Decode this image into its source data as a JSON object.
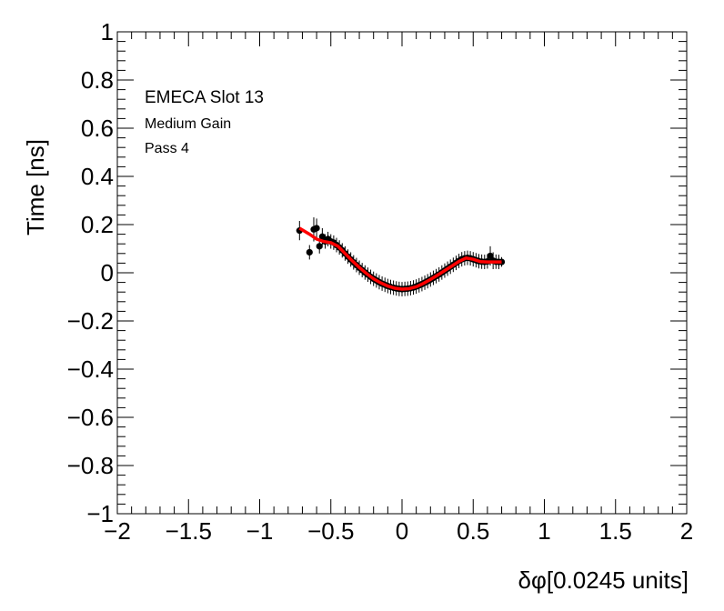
{
  "chart_data": {
    "type": "scatter",
    "title": "",
    "xlabel": "δφ[0.0245 units]",
    "ylabel": "Time [ns]",
    "xlim": [
      -2,
      2
    ],
    "ylim": [
      -1,
      1
    ],
    "x_ticks": [
      "−2",
      "−1.5",
      "−1",
      "−0.5",
      "0",
      "0.5",
      "1",
      "1.5",
      "2"
    ],
    "y_ticks": [
      "−1",
      "−0.8",
      "−0.6",
      "−0.4",
      "−0.2",
      "0",
      "0.2",
      "0.4",
      "0.6",
      "0.8",
      "1"
    ],
    "x_tick_values": [
      -2,
      -1.5,
      -1,
      -0.5,
      0,
      0.5,
      1,
      1.5,
      2
    ],
    "y_tick_values": [
      -1,
      -0.8,
      -0.6,
      -0.4,
      -0.2,
      0,
      0.2,
      0.4,
      0.6,
      0.8,
      1
    ],
    "annotations": [
      "EMECA Slot 13",
      "Medium Gain",
      "Pass 4"
    ],
    "grid": false,
    "colors": {
      "points": "#000000",
      "fit": "#ff0000"
    },
    "points": [
      {
        "x": -0.72,
        "y": 0.175,
        "err": 0.04
      },
      {
        "x": -0.65,
        "y": 0.085,
        "err": 0.03
      },
      {
        "x": -0.62,
        "y": 0.18,
        "err": 0.05
      },
      {
        "x": -0.6,
        "y": 0.185,
        "err": 0.04
      },
      {
        "x": -0.58,
        "y": 0.11,
        "err": 0.03
      },
      {
        "x": -0.56,
        "y": 0.15,
        "err": 0.035
      },
      {
        "x": -0.54,
        "y": 0.13,
        "err": 0.03
      },
      {
        "x": -0.52,
        "y": 0.14,
        "err": 0.03
      },
      {
        "x": -0.5,
        "y": 0.13,
        "err": 0.03
      },
      {
        "x": -0.48,
        "y": 0.125,
        "err": 0.03
      },
      {
        "x": -0.46,
        "y": 0.115,
        "err": 0.03
      },
      {
        "x": -0.44,
        "y": 0.105,
        "err": 0.03
      },
      {
        "x": -0.42,
        "y": 0.093,
        "err": 0.03
      },
      {
        "x": -0.4,
        "y": 0.08,
        "err": 0.03
      },
      {
        "x": -0.38,
        "y": 0.067,
        "err": 0.03
      },
      {
        "x": -0.36,
        "y": 0.055,
        "err": 0.03
      },
      {
        "x": -0.34,
        "y": 0.043,
        "err": 0.03
      },
      {
        "x": -0.32,
        "y": 0.032,
        "err": 0.03
      },
      {
        "x": -0.3,
        "y": 0.021,
        "err": 0.03
      },
      {
        "x": -0.28,
        "y": 0.011,
        "err": 0.03
      },
      {
        "x": -0.26,
        "y": 0.001,
        "err": 0.03
      },
      {
        "x": -0.24,
        "y": -0.008,
        "err": 0.03
      },
      {
        "x": -0.22,
        "y": -0.017,
        "err": 0.03
      },
      {
        "x": -0.2,
        "y": -0.025,
        "err": 0.03
      },
      {
        "x": -0.18,
        "y": -0.032,
        "err": 0.03
      },
      {
        "x": -0.16,
        "y": -0.039,
        "err": 0.03
      },
      {
        "x": -0.14,
        "y": -0.045,
        "err": 0.03
      },
      {
        "x": -0.12,
        "y": -0.05,
        "err": 0.03
      },
      {
        "x": -0.1,
        "y": -0.055,
        "err": 0.03
      },
      {
        "x": -0.08,
        "y": -0.059,
        "err": 0.03
      },
      {
        "x": -0.06,
        "y": -0.062,
        "err": 0.03
      },
      {
        "x": -0.04,
        "y": -0.065,
        "err": 0.03
      },
      {
        "x": -0.02,
        "y": -0.067,
        "err": 0.03
      },
      {
        "x": 0.0,
        "y": -0.068,
        "err": 0.03
      },
      {
        "x": 0.02,
        "y": -0.067,
        "err": 0.03
      },
      {
        "x": 0.04,
        "y": -0.066,
        "err": 0.03
      },
      {
        "x": 0.06,
        "y": -0.064,
        "err": 0.03
      },
      {
        "x": 0.08,
        "y": -0.061,
        "err": 0.03
      },
      {
        "x": 0.1,
        "y": -0.057,
        "err": 0.03
      },
      {
        "x": 0.12,
        "y": -0.052,
        "err": 0.03
      },
      {
        "x": 0.14,
        "y": -0.047,
        "err": 0.03
      },
      {
        "x": 0.16,
        "y": -0.041,
        "err": 0.03
      },
      {
        "x": 0.18,
        "y": -0.035,
        "err": 0.03
      },
      {
        "x": 0.2,
        "y": -0.028,
        "err": 0.03
      },
      {
        "x": 0.22,
        "y": -0.021,
        "err": 0.03
      },
      {
        "x": 0.24,
        "y": -0.014,
        "err": 0.03
      },
      {
        "x": 0.26,
        "y": -0.007,
        "err": 0.03
      },
      {
        "x": 0.28,
        "y": 0.001,
        "err": 0.03
      },
      {
        "x": 0.3,
        "y": 0.009,
        "err": 0.03
      },
      {
        "x": 0.32,
        "y": 0.017,
        "err": 0.03
      },
      {
        "x": 0.34,
        "y": 0.025,
        "err": 0.03
      },
      {
        "x": 0.36,
        "y": 0.033,
        "err": 0.03
      },
      {
        "x": 0.38,
        "y": 0.041,
        "err": 0.03
      },
      {
        "x": 0.4,
        "y": 0.049,
        "err": 0.03
      },
      {
        "x": 0.42,
        "y": 0.056,
        "err": 0.03
      },
      {
        "x": 0.44,
        "y": 0.06,
        "err": 0.03
      },
      {
        "x": 0.46,
        "y": 0.062,
        "err": 0.03
      },
      {
        "x": 0.48,
        "y": 0.06,
        "err": 0.03
      },
      {
        "x": 0.5,
        "y": 0.056,
        "err": 0.03
      },
      {
        "x": 0.52,
        "y": 0.052,
        "err": 0.03
      },
      {
        "x": 0.54,
        "y": 0.048,
        "err": 0.03
      },
      {
        "x": 0.56,
        "y": 0.046,
        "err": 0.03
      },
      {
        "x": 0.58,
        "y": 0.045,
        "err": 0.03
      },
      {
        "x": 0.6,
        "y": 0.047,
        "err": 0.03
      },
      {
        "x": 0.62,
        "y": 0.07,
        "err": 0.04
      },
      {
        "x": 0.64,
        "y": 0.05,
        "err": 0.035
      },
      {
        "x": 0.66,
        "y": 0.046,
        "err": 0.03
      },
      {
        "x": 0.68,
        "y": 0.045,
        "err": 0.03
      },
      {
        "x": 0.7,
        "y": 0.045,
        "err": 0.02
      }
    ],
    "fit_curve": {
      "x": [
        -0.72,
        -0.65,
        -0.6,
        -0.55,
        -0.5,
        -0.45,
        -0.4,
        -0.35,
        -0.3,
        -0.25,
        -0.2,
        -0.15,
        -0.1,
        -0.05,
        0.0,
        0.05,
        0.1,
        0.15,
        0.2,
        0.25,
        0.3,
        0.35,
        0.4,
        0.45,
        0.5,
        0.55,
        0.6,
        0.65,
        0.7
      ],
      "y": [
        0.185,
        0.16,
        0.14,
        0.13,
        0.125,
        0.11,
        0.08,
        0.05,
        0.022,
        -0.003,
        -0.025,
        -0.042,
        -0.055,
        -0.064,
        -0.068,
        -0.066,
        -0.058,
        -0.044,
        -0.028,
        -0.01,
        0.009,
        0.028,
        0.047,
        0.061,
        0.056,
        0.046,
        0.045,
        0.045,
        0.045
      ]
    }
  }
}
